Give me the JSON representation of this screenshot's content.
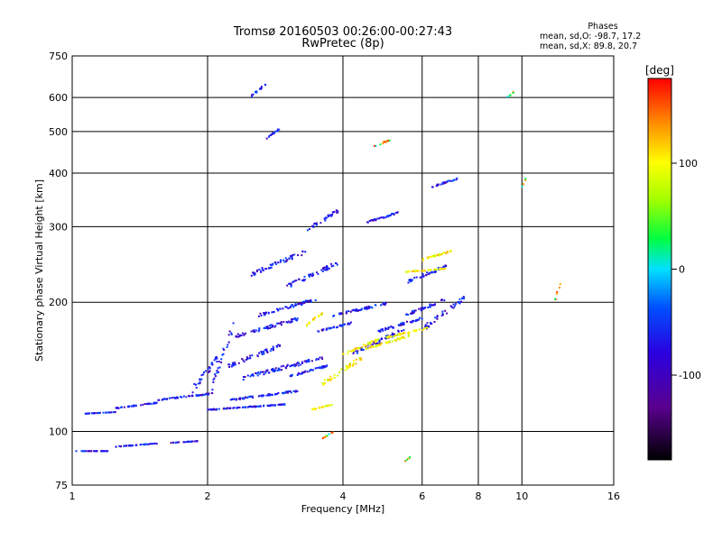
{
  "chart_data": {
    "type": "scatter",
    "title": "Tromsø 20160503 00:26:00-00:27:43",
    "subtitle": "RwPretec (8p)",
    "xlabel": "Frequency [MHz]",
    "ylabel": "Stationary phase Virtual Height [km]",
    "x_scale": "log",
    "y_scale": "log",
    "xlim": [
      1,
      16
    ],
    "ylim": [
      75,
      750
    ],
    "xticks": [
      1,
      2,
      4,
      6,
      8,
      10,
      16
    ],
    "xtick_labels": [
      "1",
      "2",
      "4",
      "6",
      "8",
      "10",
      "16"
    ],
    "yticks": [
      75,
      100,
      200,
      300,
      400,
      500,
      600,
      750
    ],
    "ytick_labels": [
      "75",
      "100",
      "200",
      "300",
      "400",
      "500",
      "600",
      "750"
    ],
    "grid": true,
    "colorbar": {
      "label": "[deg]",
      "range": [
        -180,
        180
      ],
      "ticks": [
        100,
        0,
        -100
      ],
      "tick_labels": [
        "100",
        "0",
        "-100"
      ]
    },
    "stats": {
      "heading": "Phases",
      "line1": "mean, sd,O:  -98.7, 17.2",
      "line2": "mean, sd,X:  89.8, 20.7"
    },
    "series": [
      {
        "traces": [
          [
            1.02,
            1.2,
            90,
            90
          ],
          [
            1.25,
            1.55,
            92,
            94
          ],
          [
            1.65,
            1.9,
            94,
            95
          ],
          [
            1.07,
            1.25,
            110,
            111
          ],
          [
            1.25,
            1.55,
            113,
            117
          ],
          [
            1.55,
            2.05,
            118,
            123
          ],
          [
            1.85,
            2.2,
            123,
            160
          ],
          [
            2.05,
            2.3,
            125,
            185
          ],
          [
            2.0,
            3.0,
            112,
            116
          ],
          [
            2.25,
            3.2,
            118,
            125
          ],
          [
            2.4,
            3.6,
            132,
            150
          ],
          [
            2.2,
            2.9,
            140,
            160
          ],
          [
            2.3,
            3.2,
            165,
            185
          ],
          [
            2.6,
            3.5,
            185,
            205
          ],
          [
            2.5,
            3.3,
            230,
            265
          ],
          [
            3.0,
            3.9,
            215,
            250
          ],
          [
            3.3,
            3.9,
            290,
            330
          ],
          [
            3.0,
            3.7,
            133,
            143
          ],
          [
            3.5,
            4.2,
            170,
            180
          ],
          [
            3.8,
            5.0,
            185,
            200
          ],
          [
            4.2,
            5.5,
            150,
            175
          ],
          [
            4.8,
            6.0,
            170,
            185
          ],
          [
            5.5,
            6.8,
            185,
            205
          ],
          [
            6.0,
            7.5,
            170,
            210
          ],
          [
            5.5,
            6.8,
            220,
            245
          ],
          [
            4.5,
            5.3,
            305,
            325
          ],
          [
            6.3,
            7.2,
            370,
            390
          ],
          [
            2.7,
            2.9,
            480,
            510
          ],
          [
            2.5,
            2.7,
            600,
            650
          ]
        ]
      },
      {
        "traces": [
          [
            3.4,
            3.8,
            112,
            116
          ],
          [
            3.6,
            4.4,
            128,
            150
          ],
          [
            4.0,
            4.8,
            150,
            165
          ],
          [
            4.5,
            5.6,
            155,
            168
          ],
          [
            5.0,
            6.2,
            165,
            175
          ],
          [
            5.5,
            6.8,
            235,
            240
          ],
          [
            6.0,
            7.0,
            250,
            265
          ],
          [
            3.3,
            3.6,
            175,
            190
          ]
        ]
      },
      {
        "traces": [
          [
            4.7,
            5.1,
            460,
            480
          ],
          [
            9.3,
            9.6,
            600,
            620
          ],
          [
            10.0,
            10.2,
            370,
            390
          ],
          [
            11.8,
            12.2,
            198,
            225
          ],
          [
            5.5,
            5.7,
            85,
            88
          ],
          [
            3.6,
            3.8,
            96,
            100
          ]
        ]
      }
    ]
  }
}
